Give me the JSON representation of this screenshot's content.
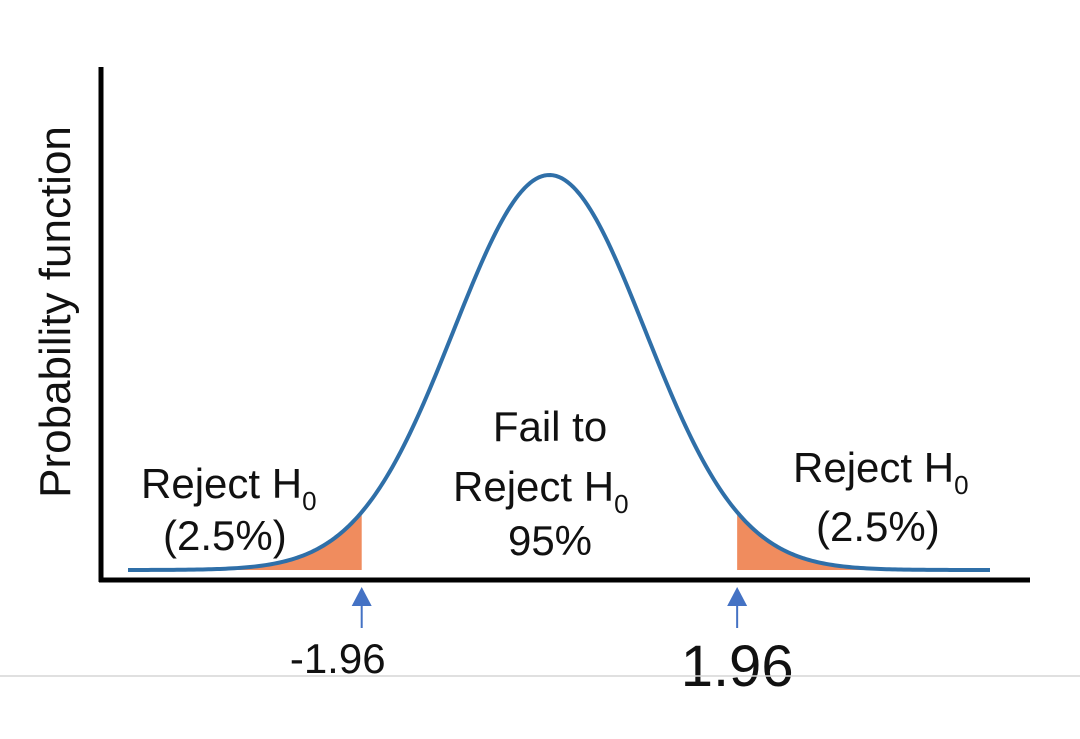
{
  "chart_data": {
    "type": "area",
    "title": "",
    "xlabel": "",
    "ylabel": "Probability function",
    "distribution": "standard normal",
    "xlim": [
      -4.4,
      4.6
    ],
    "ylim": [
      0,
      0.4
    ],
    "critical_values": [
      {
        "value": -1.96,
        "label": "-1.96"
      },
      {
        "value": 1.96,
        "label": "1.96"
      }
    ],
    "regions": [
      {
        "name": "left-reject",
        "label": "Reject H",
        "subscript": "0",
        "percent": "(2.5%)",
        "from": -4.4,
        "to": -1.96
      },
      {
        "name": "fail-to-reject",
        "lines": [
          "Fail to",
          "Reject H"
        ],
        "subscript": "0",
        "percent": "95%",
        "from": -1.96,
        "to": 1.96
      },
      {
        "name": "right-reject",
        "label": "Reject H",
        "subscript": "0",
        "percent": "(2.5%)",
        "from": 1.96,
        "to": 4.6
      }
    ],
    "colors": {
      "curve": "#2f6fa8",
      "tail_fill": "#f08c5e",
      "axis": "#000000",
      "arrow": "#4472c4"
    },
    "grid": false,
    "legend": "none"
  }
}
